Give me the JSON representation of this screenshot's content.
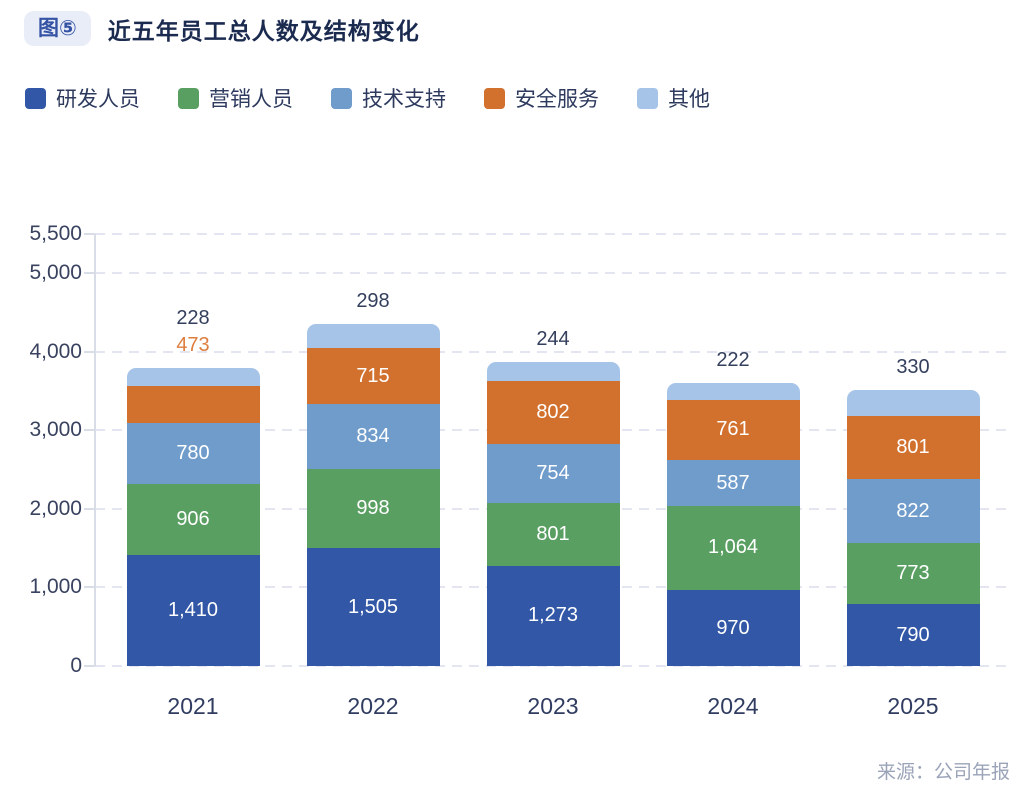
{
  "header": {
    "badge": "图⑤",
    "title": "近五年员工总人数及结构变化"
  },
  "source": "来源：公司年报",
  "chart_data": {
    "type": "bar",
    "stacked": true,
    "title": "近五年员工总人数及结构变化",
    "categories": [
      "2021",
      "2022",
      "2023",
      "2024",
      "2025"
    ],
    "series": [
      {
        "name": "研发人员",
        "color": "#3157A6",
        "values": [
          1410,
          1505,
          1273,
          970,
          790
        ]
      },
      {
        "name": "营销人员",
        "color": "#5A9F62",
        "values": [
          906,
          998,
          801,
          1064,
          773
        ]
      },
      {
        "name": "技术支持",
        "color": "#6F9CCB",
        "values": [
          780,
          834,
          754,
          587,
          822
        ]
      },
      {
        "name": "安全服务",
        "color": "#D2702E",
        "values": [
          473,
          715,
          802,
          761,
          801
        ],
        "outside_label_color": "#DE7E3E"
      },
      {
        "name": "其他",
        "color": "#A6C4E8",
        "values": [
          228,
          298,
          244,
          222,
          330
        ],
        "outside_label_color": "#333F5C"
      }
    ],
    "ylim": [
      0,
      5500
    ],
    "yticks": [
      {
        "value": 0,
        "label": "0"
      },
      {
        "value": 1000,
        "label": "1,000"
      },
      {
        "value": 2000,
        "label": "2,000"
      },
      {
        "value": 3000,
        "label": "3,000"
      },
      {
        "value": 4000,
        "label": "4,000"
      },
      {
        "value": 5000,
        "label": "5,000"
      },
      {
        "value": 5500,
        "label": "5,500"
      }
    ],
    "grid": "horizontal-dashed",
    "legend_position": "top-left",
    "value_labels": "inside segments in white; segments too small are labeled above the bar (2021: 473 in orange, 其他 values in navy)",
    "colors": {
      "grid": "#E3E6F0",
      "axis": "#D9DDE7",
      "axis_text": "#39425F",
      "inside_label": "#FFFFFF",
      "title_text": "#1B2A4F",
      "legend_text": "#2D3A5E",
      "source_text": "#9AA3B8",
      "badge_bg": "#E8EDF8",
      "badge_text": "#3553A5"
    }
  }
}
